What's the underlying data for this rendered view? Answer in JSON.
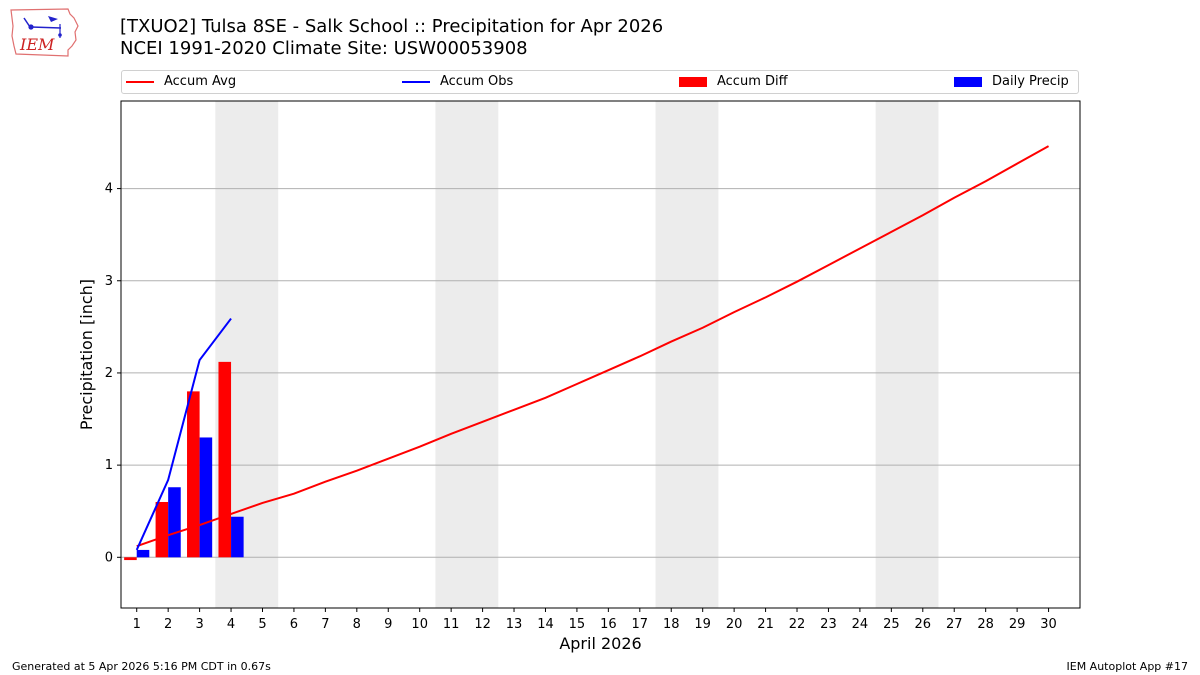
{
  "header": {
    "title_line1": "[TXUO2] Tulsa 8SE - Salk School :: Precipitation for Apr 2026",
    "title_line2": "NCEI 1991-2020 Climate Site: USW00053908"
  },
  "logo": {
    "text": "IEM"
  },
  "footer": {
    "left": "Generated at 5 Apr 2026 5:16 PM CDT in 0.67s",
    "right": "IEM Autoplot App #17"
  },
  "colors": {
    "avg": "#ff0000",
    "obs": "#0000ff",
    "diff": "#ff0000",
    "daily": "#0000ff",
    "weekend": "#ececec",
    "grid": "#b0b0b0"
  },
  "chart_data": {
    "type": "bar",
    "title": "[TXUO2] Tulsa 8SE - Salk School :: Precipitation for Apr 2026",
    "xlabel": "April 2026",
    "ylabel": "Precipitation [inch]",
    "xlim": [
      0.5,
      31
    ],
    "ylim": [
      -0.55,
      4.95
    ],
    "yticks": [
      0,
      1,
      2,
      3,
      4
    ],
    "xticks": [
      1,
      2,
      3,
      4,
      5,
      6,
      7,
      8,
      9,
      10,
      11,
      12,
      13,
      14,
      15,
      16,
      17,
      18,
      19,
      20,
      21,
      22,
      23,
      24,
      25,
      26,
      27,
      28,
      29,
      30
    ],
    "grid": "horizontal",
    "legend_position": "top",
    "weekend_bands": [
      [
        3.5,
        5.5
      ],
      [
        10.5,
        12.5
      ],
      [
        17.5,
        19.5
      ],
      [
        24.5,
        26.5
      ]
    ],
    "series": [
      {
        "name": "Accum Avg",
        "kind": "line",
        "x": [
          1,
          2,
          3,
          4,
          5,
          6,
          7,
          8,
          9,
          10,
          11,
          12,
          13,
          14,
          15,
          16,
          17,
          18,
          19,
          20,
          21,
          22,
          23,
          24,
          25,
          26,
          27,
          28,
          29,
          30
        ],
        "values": [
          0.12,
          0.24,
          0.35,
          0.47,
          0.59,
          0.69,
          0.82,
          0.94,
          1.07,
          1.2,
          1.34,
          1.47,
          1.6,
          1.73,
          1.88,
          2.03,
          2.18,
          2.34,
          2.49,
          2.66,
          2.82,
          2.99,
          3.17,
          3.35,
          3.53,
          3.71,
          3.9,
          4.08,
          4.27,
          4.46
        ]
      },
      {
        "name": "Accum Obs",
        "kind": "line",
        "x": [
          1,
          2,
          3,
          4
        ],
        "values": [
          0.08,
          0.84,
          2.14,
          2.59
        ]
      },
      {
        "name": "Accum Diff",
        "kind": "bar",
        "x": [
          1,
          2,
          3,
          4
        ],
        "values": [
          -0.03,
          0.6,
          1.8,
          2.12
        ]
      },
      {
        "name": "Daily Precip",
        "kind": "bar",
        "x": [
          1,
          2,
          3,
          4
        ],
        "values": [
          0.08,
          0.76,
          1.3,
          0.44
        ]
      }
    ]
  }
}
